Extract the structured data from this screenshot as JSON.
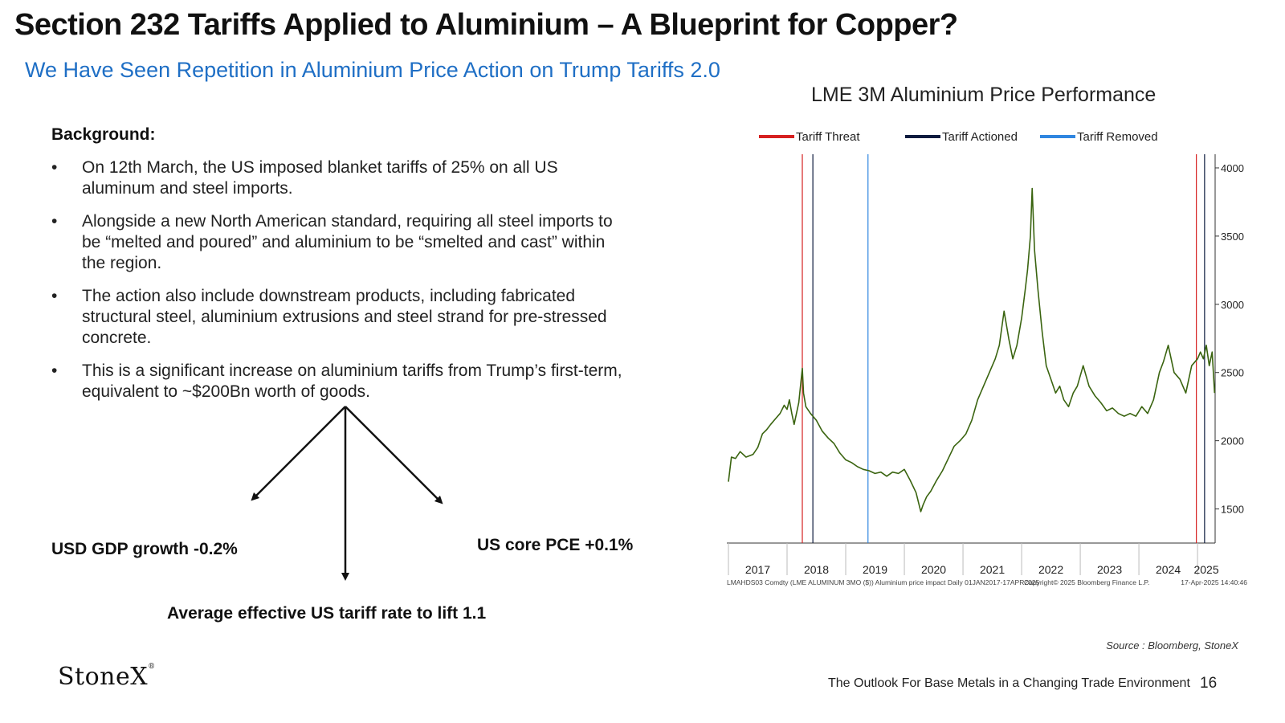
{
  "title": "Section 232 Tariffs Applied to Aluminium – A Blueprint for Copper?",
  "subtitle": "We Have Seen Repetition in Aluminium Price Action on Trump Tariffs 2.0",
  "background": {
    "heading": "Background:",
    "bullets": [
      "On 12th March, the US imposed blanket tariffs of 25% on all US aluminum and steel imports.",
      "Alongside a new North American standard, requiring all steel imports to be “melted and poured” and aluminium to be “smelted and cast” within the region.",
      "The action also include downstream products, including fabricated structural steel, aluminium extrusions and steel strand for pre-stressed concrete.",
      "This is a significant increase on aluminium tariffs from Trump’s first-term, equivalent to ~$200Bn worth of goods."
    ]
  },
  "impacts": {
    "left": "USD GDP growth -0.2%",
    "right": "US core PCE +0.1%",
    "bottom": "Average effective US tariff rate to lift 1.1"
  },
  "chart_data": {
    "type": "line",
    "title": "LME 3M Aluminium Price Performance",
    "legend": [
      {
        "name": "Tariff Threat",
        "color": "#d62020"
      },
      {
        "name": "Tariff Actioned",
        "color": "#0d1b3e"
      },
      {
        "name": "Tariff Removed",
        "color": "#2f86e0"
      }
    ],
    "legend_position": "top",
    "x_ticks": [
      "2017",
      "2018",
      "2019",
      "2020",
      "2021",
      "2022",
      "2023",
      "2024",
      "2025"
    ],
    "xlim": [
      2017.0,
      2025.3
    ],
    "ylim": [
      1250,
      4100
    ],
    "y_ticks": [
      1500,
      2000,
      2500,
      3000,
      3500,
      4000
    ],
    "y_axis_side": "right",
    "line_color": "#3a6410",
    "series": [
      {
        "x": [
          2017.0,
          2017.05,
          2017.12,
          2017.2,
          2017.3,
          2017.42,
          2017.5,
          2017.58,
          2017.65,
          2017.72,
          2017.8,
          2017.88,
          2017.95,
          2018.0,
          2018.04,
          2018.08,
          2018.12,
          2018.2,
          2018.26,
          2018.28,
          2018.32,
          2018.4,
          2018.5,
          2018.6,
          2018.7,
          2018.8,
          2018.9,
          2019.0,
          2019.1,
          2019.2,
          2019.3,
          2019.4,
          2019.5,
          2019.6,
          2019.7,
          2019.8,
          2019.9,
          2020.0,
          2020.1,
          2020.2,
          2020.28,
          2020.32,
          2020.38,
          2020.45,
          2020.55,
          2020.65,
          2020.75,
          2020.85,
          2020.95,
          2021.05,
          2021.15,
          2021.25,
          2021.35,
          2021.45,
          2021.55,
          2021.62,
          2021.7,
          2021.78,
          2021.85,
          2021.92,
          2022.0,
          2022.06,
          2022.1,
          2022.15,
          2022.18,
          2022.22,
          2022.28,
          2022.35,
          2022.42,
          2022.5,
          2022.58,
          2022.65,
          2022.72,
          2022.8,
          2022.88,
          2022.95,
          2023.05,
          2023.15,
          2023.25,
          2023.35,
          2023.45,
          2023.55,
          2023.65,
          2023.75,
          2023.85,
          2023.95,
          2024.05,
          2024.15,
          2024.25,
          2024.35,
          2024.42,
          2024.5,
          2024.6,
          2024.7,
          2024.8,
          2024.9,
          2025.0,
          2025.05,
          2025.1,
          2025.15,
          2025.2,
          2025.25,
          2025.29
        ],
        "y": [
          1700,
          1880,
          1870,
          1920,
          1880,
          1900,
          1950,
          2050,
          2080,
          2120,
          2160,
          2200,
          2260,
          2230,
          2300,
          2200,
          2120,
          2280,
          2530,
          2350,
          2250,
          2200,
          2150,
          2070,
          2020,
          1980,
          1910,
          1860,
          1840,
          1810,
          1790,
          1780,
          1760,
          1770,
          1740,
          1770,
          1760,
          1790,
          1710,
          1620,
          1480,
          1530,
          1590,
          1630,
          1710,
          1780,
          1870,
          1960,
          2000,
          2050,
          2150,
          2300,
          2400,
          2500,
          2600,
          2700,
          2950,
          2750,
          2600,
          2700,
          2900,
          3100,
          3250,
          3500,
          3850,
          3400,
          3100,
          2800,
          2550,
          2450,
          2350,
          2400,
          2300,
          2250,
          2350,
          2400,
          2550,
          2400,
          2330,
          2280,
          2220,
          2240,
          2200,
          2180,
          2200,
          2180,
          2250,
          2200,
          2300,
          2500,
          2580,
          2700,
          2500,
          2450,
          2350,
          2550,
          2600,
          2650,
          2600,
          2700,
          2550,
          2650,
          2350
        ]
      }
    ],
    "vlines": [
      {
        "x": 2018.26,
        "kind": "Tariff Threat"
      },
      {
        "x": 2018.44,
        "kind": "Tariff Actioned"
      },
      {
        "x": 2019.38,
        "kind": "Tariff Removed"
      },
      {
        "x": 2024.98,
        "kind": "Tariff Threat"
      },
      {
        "x": 2025.12,
        "kind": "Tariff Actioned"
      }
    ],
    "footnotes": {
      "left": "LMAHDS03 Comdty (LME ALUMINUM 3MO ($)) Aluminium price impact Daily 01JAN2017-17APR2025",
      "center": "Copyright© 2025 Bloomberg Finance L.P.",
      "right": "17-Apr-2025 14:40:46"
    }
  },
  "source": "Source : Bloomberg, StoneX",
  "footer": {
    "logo": "StoneX",
    "logo_mark": "®",
    "text": "The Outlook For Base Metals in a Changing Trade Environment",
    "page": "16"
  }
}
